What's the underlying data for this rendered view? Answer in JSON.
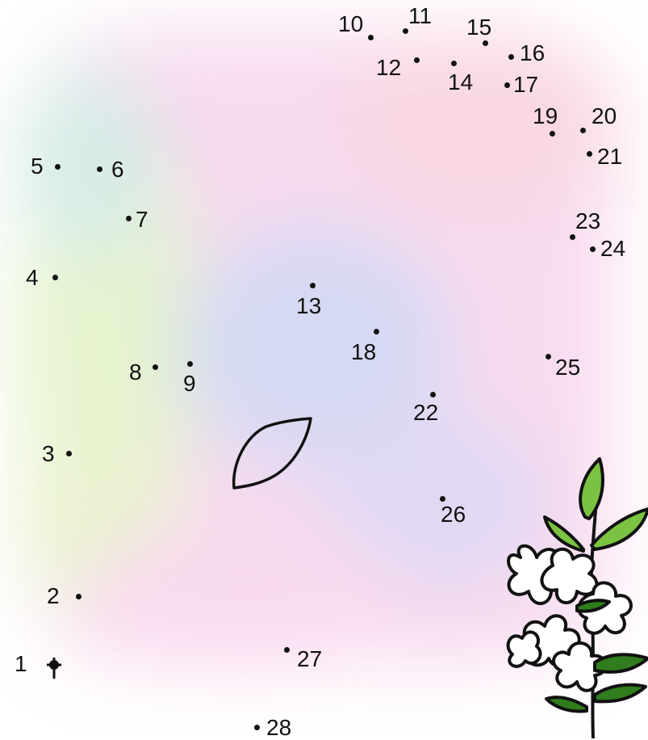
{
  "puzzle": {
    "dots": [
      {
        "label": "1"
      },
      {
        "label": "2"
      },
      {
        "label": "3"
      },
      {
        "label": "4"
      },
      {
        "label": "5"
      },
      {
        "label": "6"
      },
      {
        "label": "7"
      },
      {
        "label": "8"
      },
      {
        "label": "9"
      },
      {
        "label": "10"
      },
      {
        "label": "11"
      },
      {
        "label": "12"
      },
      {
        "label": "13"
      },
      {
        "label": "14"
      },
      {
        "label": "15"
      },
      {
        "label": "16"
      },
      {
        "label": "17"
      },
      {
        "label": "18"
      },
      {
        "label": "19"
      },
      {
        "label": "20"
      },
      {
        "label": "21"
      },
      {
        "label": "22"
      },
      {
        "label": "23"
      },
      {
        "label": "24"
      },
      {
        "label": "25"
      },
      {
        "label": "26"
      },
      {
        "label": "27"
      },
      {
        "label": "28"
      }
    ]
  },
  "colors": {
    "ink": "#111111",
    "leaf_green": "#7cc242",
    "leaf_dark": "#2f7d1c",
    "wash_pink": "#f7c9e6",
    "wash_blue": "#c9d3f5",
    "wash_yellow": "#f3f3b8",
    "wash_green": "#cdeec9"
  },
  "icons": {
    "start": "start-cross-icon",
    "leaf_shape": "leaf-outline-icon",
    "flower": "flower-sprig-icon"
  }
}
